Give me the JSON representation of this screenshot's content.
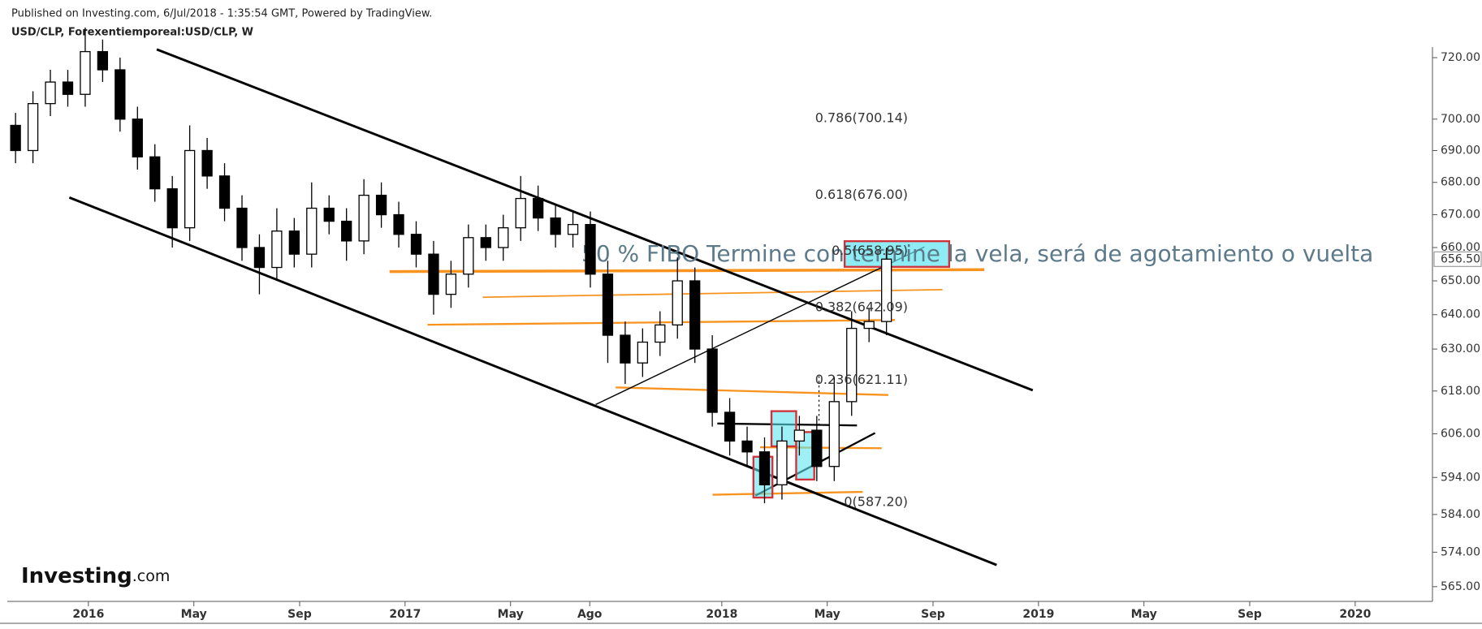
{
  "header": {
    "published": "Published on Investing.com, 6/Jul/2018 - 1:35:54 GMT, Powered by TradingView.",
    "symbol": "USD/CLP, Forexentiemporeal:USD/CLP, W"
  },
  "logo": {
    "brand": "Investing",
    "suffix": ".com"
  },
  "chart_data": {
    "type": "candlestick",
    "yscale": "log",
    "up_color": "#ffffff",
    "down_color": "#000000",
    "annotation": "50 % FIBO Termine con termine la vela, será de agotamiento o vuelta",
    "x": [
      2015.77,
      2015.825,
      2015.88,
      2015.935,
      2015.99,
      2016.045,
      2016.1,
      2016.155,
      2016.21,
      2016.265,
      2016.32,
      2016.375,
      2016.43,
      2016.485,
      2016.54,
      2016.595,
      2016.65,
      2016.705,
      2016.76,
      2016.815,
      2016.87,
      2016.925,
      2016.98,
      2017.035,
      2017.09,
      2017.145,
      2017.2,
      2017.255,
      2017.31,
      2017.365,
      2017.42,
      2017.475,
      2017.53,
      2017.585,
      2017.64,
      2017.695,
      2017.75,
      2017.805,
      2017.86,
      2017.915,
      2017.97,
      2018.025,
      2018.08,
      2018.135,
      2018.19,
      2018.245,
      2018.3,
      2018.355,
      2018.41,
      2018.465,
      2018.52
    ],
    "open": [
      698,
      690,
      705,
      712,
      708,
      722,
      716,
      700,
      688,
      678,
      666,
      690,
      682,
      672,
      660,
      654,
      665,
      658,
      672,
      668,
      662,
      676,
      670,
      664,
      658,
      646,
      652,
      663,
      660,
      666,
      675,
      669,
      664,
      667,
      652,
      634,
      626,
      632,
      637,
      650,
      630,
      612,
      604,
      601,
      592,
      604,
      607,
      597,
      615,
      636,
      638
    ],
    "high": [
      702,
      709,
      716,
      716,
      730,
      726,
      720,
      704,
      692,
      682,
      698,
      694,
      686,
      676,
      664,
      672,
      669,
      680,
      676,
      672,
      681,
      680,
      674,
      668,
      662,
      656,
      667,
      667,
      670,
      682,
      679,
      673,
      671,
      671,
      656,
      638,
      636,
      641,
      657,
      654,
      634,
      616,
      608,
      605,
      608,
      611,
      611,
      622,
      641,
      642,
      660
    ],
    "low": [
      686,
      686,
      701,
      704,
      704,
      712,
      696,
      684,
      674,
      660,
      662,
      678,
      668,
      656,
      646,
      650,
      654,
      654,
      664,
      656,
      658,
      666,
      660,
      654,
      640,
      642,
      648,
      656,
      656,
      662,
      665,
      660,
      660,
      648,
      626,
      620,
      622,
      628,
      633,
      626,
      608,
      600,
      597,
      587,
      588,
      600,
      593,
      593,
      611,
      632,
      634
    ],
    "close": [
      690,
      705,
      712,
      708,
      722,
      716,
      700,
      688,
      678,
      666,
      690,
      682,
      672,
      660,
      654,
      665,
      658,
      672,
      668,
      662,
      676,
      670,
      664,
      658,
      646,
      652,
      663,
      660,
      666,
      675,
      669,
      664,
      667,
      652,
      634,
      626,
      632,
      637,
      650,
      630,
      612,
      604,
      601,
      592,
      604,
      607,
      597,
      615,
      636,
      638,
      656.5
    ],
    "last_price": {
      "value": 656.5,
      "label": "656.50"
    },
    "fib_levels": [
      {
        "label": "0.786(700.14)",
        "value": 700.14
      },
      {
        "label": "0.618(676.00)",
        "value": 676.0
      },
      {
        "label": "0.5(658.95)",
        "value": 658.95
      },
      {
        "label": "0.382(642.09)",
        "value": 642.09
      },
      {
        "label": "0.236(621.11)",
        "value": 621.11
      },
      {
        "label": "0(587.20)",
        "value": 587.2
      }
    ],
    "xlim": [
      2015.744,
      2020.244
    ],
    "ylim": [
      561.2,
      723.5
    ],
    "xticks": [
      2016,
      {
        "value": 2016.333,
        "label": "May"
      },
      {
        "value": 2016.667,
        "label": "Sep"
      },
      2017,
      {
        "value": 2017.333,
        "label": "May"
      },
      {
        "value": 2017.583,
        "label": "Ago"
      },
      2018,
      {
        "value": 2018.333,
        "label": "May"
      },
      {
        "value": 2018.667,
        "label": "Sep"
      },
      2019,
      {
        "value": 2019.333,
        "label": "May"
      },
      {
        "value": 2019.667,
        "label": "Sep"
      },
      2020
    ],
    "yticks": [
      {
        "value": 720,
        "label": "720.00"
      },
      {
        "value": 700,
        "label": "700.00"
      },
      {
        "value": 690,
        "label": "690.00"
      },
      {
        "value": 680,
        "label": "680.00"
      },
      {
        "value": 670,
        "label": "670.00"
      },
      {
        "value": 660,
        "label": "660.00"
      },
      {
        "value": 650,
        "label": "650.00"
      },
      {
        "value": 640,
        "label": "640.00"
      },
      {
        "value": 630,
        "label": "630.00"
      },
      {
        "value": 618,
        "label": "618.00"
      },
      {
        "value": 606,
        "label": "606.00"
      },
      {
        "value": 594,
        "label": "594.00"
      },
      {
        "value": 584,
        "label": "584.00"
      },
      {
        "value": 574,
        "label": "574.00"
      },
      {
        "value": 565,
        "label": "565.00"
      }
    ]
  }
}
